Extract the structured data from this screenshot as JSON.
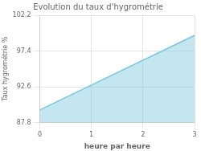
{
  "chart_data": {
    "type": "area",
    "title": "Evolution du taux d'hygrométrie",
    "xlabel": "heure par heure",
    "ylabel": "Taux hygrométrie %",
    "x": [
      0,
      3
    ],
    "values": [
      89.5,
      99.5
    ],
    "color": "#7cc8e0",
    "xlim": [
      0,
      3
    ],
    "ylim": [
      87.8,
      102.2
    ],
    "xticks": [
      0,
      1,
      2,
      3
    ],
    "yticks": [
      87.8,
      92.6,
      97.4,
      102.2
    ],
    "grid": true
  }
}
